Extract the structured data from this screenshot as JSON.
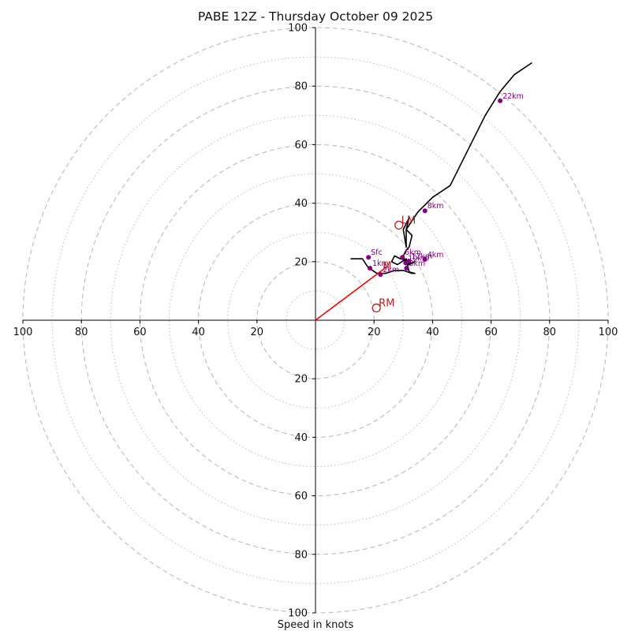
{
  "chart_data": {
    "type": "hodograph",
    "title": "PABE 12Z - Thursday October 09 2025",
    "xlabel": "Speed in knots",
    "range": [
      -100,
      100
    ],
    "ring_major": [
      20,
      40,
      60,
      80,
      100
    ],
    "ring_minor": [
      10,
      30,
      50,
      70,
      90
    ],
    "tick_labels": {
      "x": [
        "100",
        "80",
        "60",
        "40",
        "20",
        "20",
        "40",
        "60",
        "80",
        "100"
      ],
      "x_values": [
        -100,
        -80,
        -60,
        -40,
        -20,
        20,
        40,
        60,
        80,
        100
      ],
      "y": [
        "100",
        "80",
        "60",
        "40",
        "20",
        "20",
        "40",
        "60",
        "80",
        "100"
      ],
      "y_values": [
        100,
        80,
        60,
        40,
        20,
        -20,
        -40,
        -60,
        -80,
        -100
      ]
    },
    "hodograph_line": {
      "u": [
        12,
        16,
        18,
        21,
        24,
        27,
        30,
        33,
        34,
        32,
        31,
        28,
        26,
        27,
        29,
        31,
        32,
        34,
        31,
        30,
        31,
        32,
        33,
        31,
        32,
        30,
        31,
        31,
        35,
        40,
        46,
        52,
        58,
        63,
        68,
        74
      ],
      "v": [
        21,
        21,
        18,
        16,
        16,
        17,
        17,
        16,
        16,
        16.5,
        21,
        19,
        20,
        22,
        21,
        20.5,
        19,
        20,
        19,
        22,
        24,
        25,
        29,
        31,
        35,
        31,
        25,
        31,
        37,
        42,
        46,
        58,
        70,
        78,
        84,
        88
      ]
    },
    "height_markers": [
      {
        "label": "Sfc",
        "u": 18.1,
        "v": 21.5
      },
      {
        "label": "1km",
        "u": 18.6,
        "v": 17.8
      },
      {
        "label": "2km",
        "u": 22.2,
        "v": 15.6
      },
      {
        "label": "3km",
        "u": 31.1,
        "v": 17.8
      },
      {
        "label": "4km",
        "u": 37.4,
        "v": 20.8
      },
      {
        "label": "6km",
        "u": 29.7,
        "v": 21.5
      },
      {
        "label": "8km",
        "u": 37.4,
        "v": 37.4
      },
      {
        "label": "10km",
        "u": 30.8,
        "v": 19.6
      },
      {
        "label": "12km",
        "u": 31.9,
        "v": 20.2
      },
      {
        "label": "22km",
        "u": 63.1,
        "v": 75.0
      }
    ],
    "storm_motion": [
      {
        "label": "LM",
        "u": 28.5,
        "v": 32.5
      },
      {
        "label": "RM",
        "u": 20.8,
        "v": 4.2
      }
    ],
    "mean_wind": {
      "label": "M",
      "u": 24.5,
      "v": 18.5
    },
    "mean_wind_vector": {
      "u": 24,
      "v": 18
    },
    "colors": {
      "hodograph": "#000000",
      "markers": "#800080",
      "storm_motion": "#b22222",
      "vector": "#ee0000",
      "grid": "#bbbbbb"
    }
  }
}
